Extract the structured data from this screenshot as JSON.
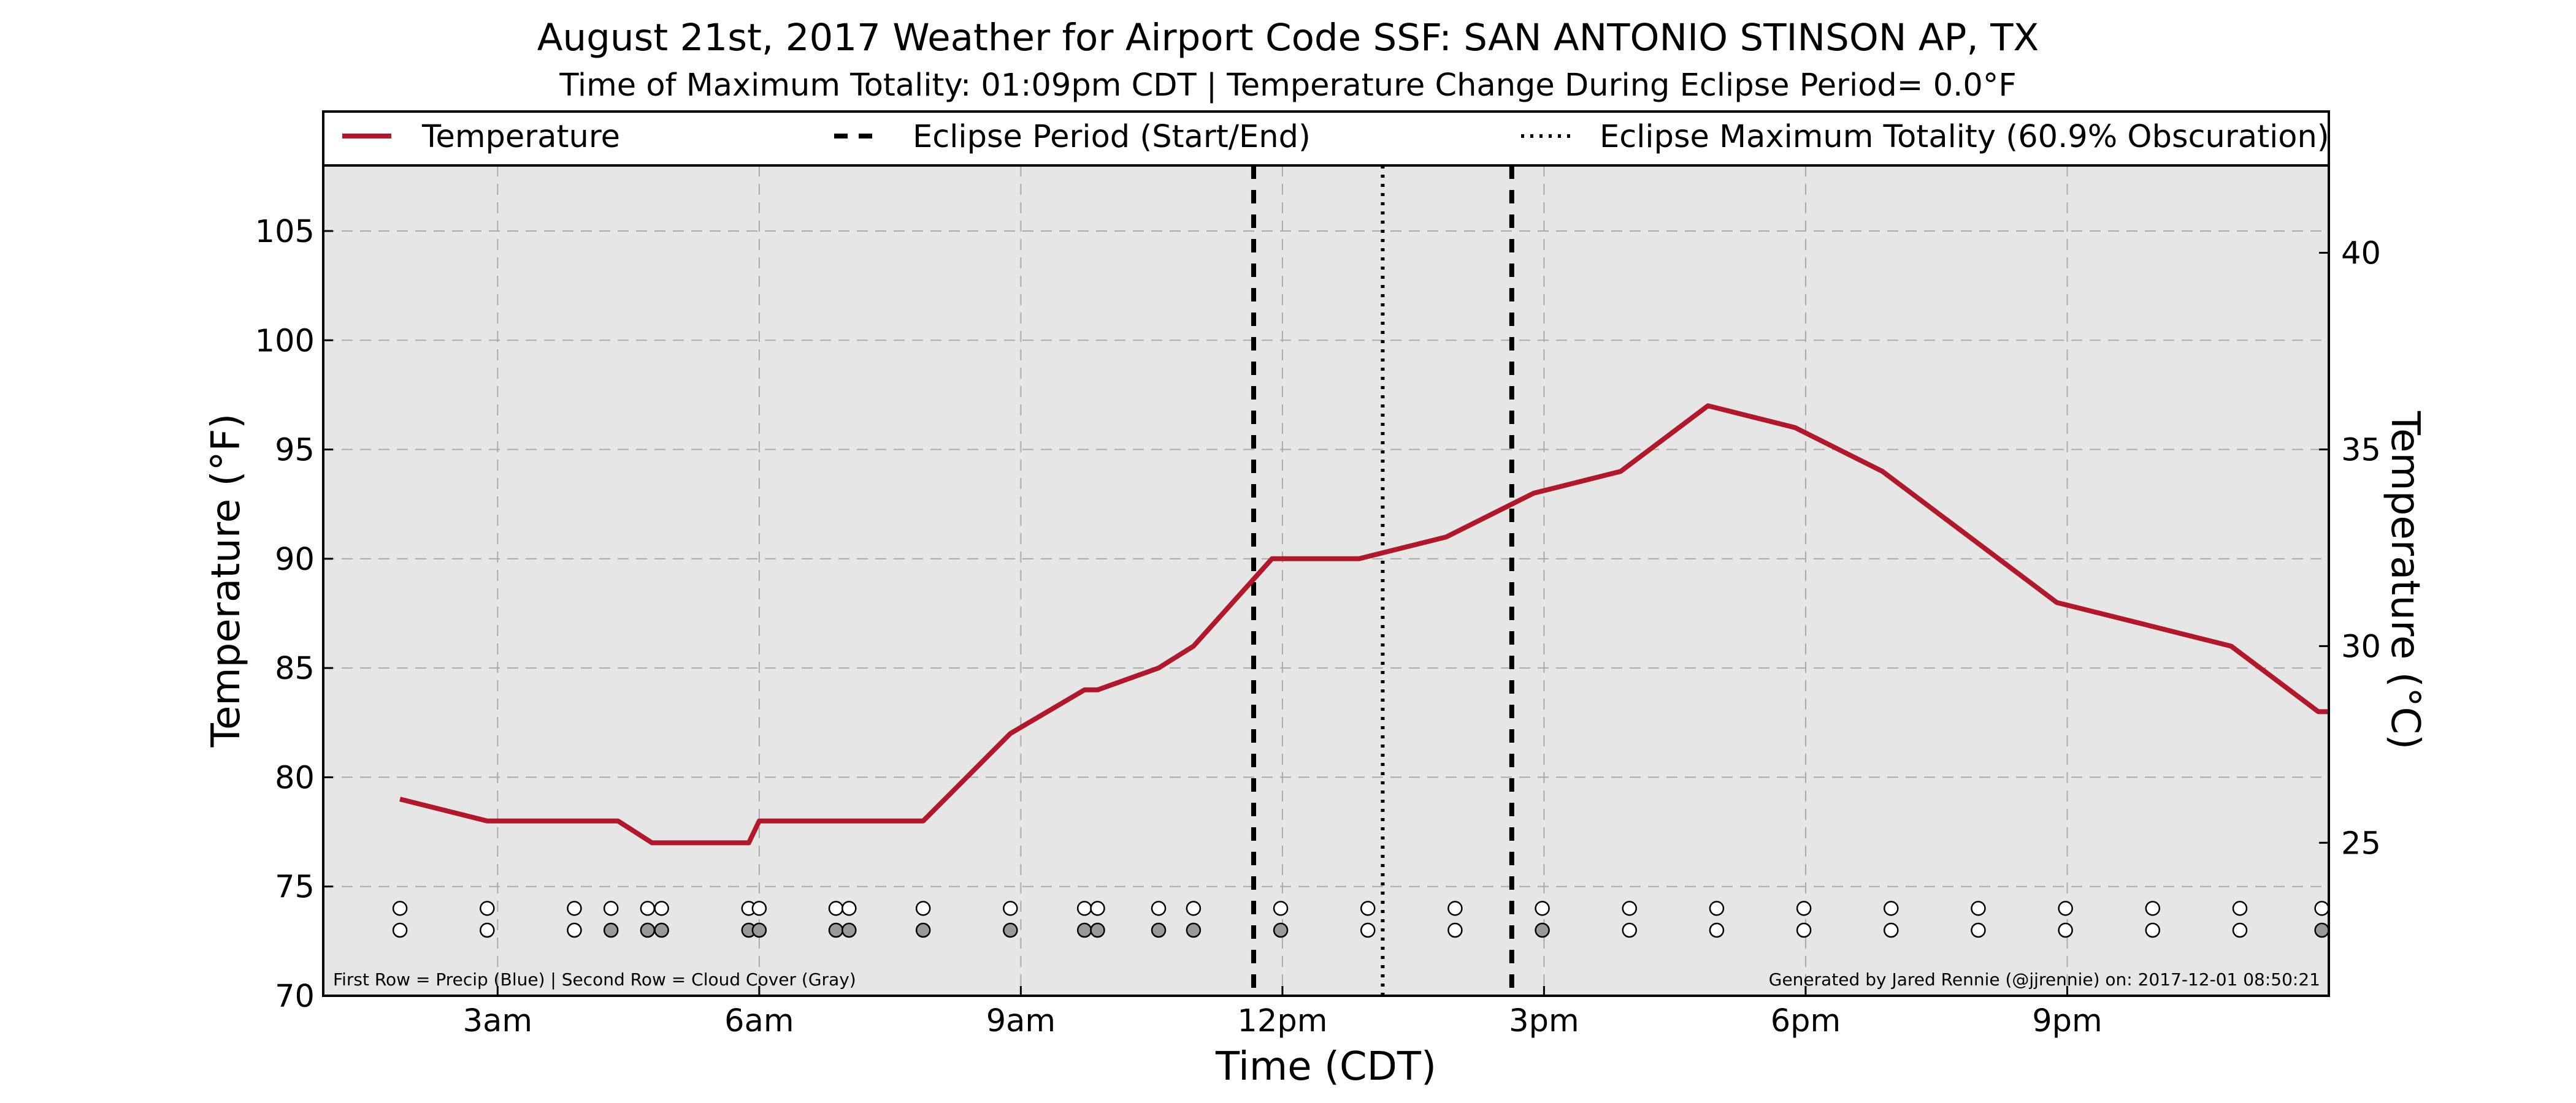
{
  "chart_data": {
    "type": "line",
    "title": "August 21st, 2017 Weather for Airport Code SSF: SAN ANTONIO STINSON AP, TX",
    "subtitle": "Time of Maximum Totality: 01:09pm CDT | Temperature Change During Eclipse Period= 0.0°F",
    "xlabel": "Time (CDT)",
    "ylabel": "Temperature (°F)",
    "ylabel_right": "Temperature (°C)",
    "xlim": [
      1.0,
      24.0
    ],
    "ylim": [
      70,
      108
    ],
    "ylim_right_c": [
      21.11,
      42.22
    ],
    "x_ticks": [
      {
        "value": 3,
        "label": "3am"
      },
      {
        "value": 6,
        "label": "6am"
      },
      {
        "value": 9,
        "label": "9am"
      },
      {
        "value": 12,
        "label": "12pm"
      },
      {
        "value": 15,
        "label": "3pm"
      },
      {
        "value": 18,
        "label": "6pm"
      },
      {
        "value": 21,
        "label": "9pm"
      }
    ],
    "y_ticks": [
      "70",
      "75",
      "80",
      "85",
      "90",
      "95",
      "100",
      "105"
    ],
    "y_ticks_right": [
      "25",
      "30",
      "35",
      "40"
    ],
    "grid": true,
    "legend_position": "top",
    "series": [
      {
        "name": "Temperature",
        "color": "#b2182b",
        "x": [
          1.88,
          2.88,
          3.88,
          4.38,
          4.77,
          4.95,
          5.88,
          6.0,
          6.88,
          7.88,
          8.88,
          9.73,
          9.88,
          10.58,
          10.98,
          11.88,
          12.88,
          13.88,
          14.88,
          15.88,
          16.88,
          17.88,
          18.88,
          19.88,
          20.88,
          21.88,
          22.88,
          23.88,
          24.0
        ],
        "values": [
          79,
          78,
          78,
          78,
          77,
          77,
          77,
          78,
          78,
          78,
          82,
          84,
          84,
          85,
          86,
          90,
          90,
          91,
          93,
          94,
          97,
          96,
          94,
          91,
          88,
          87,
          86,
          83,
          83
        ]
      }
    ],
    "eclipse": {
      "start": 11.67,
      "end": 14.63,
      "max": 13.15,
      "start_end_label": "Eclipse Period (Start/End)",
      "max_label": "Eclipse Maximum Totality (60.9% Obscuration)"
    },
    "precip_row": {
      "label_y": 74,
      "x": [
        1.88,
        2.88,
        3.88,
        4.3,
        4.72,
        4.88,
        5.88,
        6.0,
        6.88,
        7.03,
        7.88,
        8.88,
        9.73,
        9.88,
        10.58,
        10.98,
        11.98,
        12.98,
        13.98,
        14.98,
        15.98,
        16.98,
        17.98,
        18.98,
        19.98,
        20.98,
        21.98,
        22.98,
        23.92
      ],
      "fill": [
        "white",
        "white",
        "white",
        "white",
        "white",
        "white",
        "white",
        "white",
        "white",
        "white",
        "white",
        "white",
        "white",
        "white",
        "white",
        "white",
        "white",
        "white",
        "white",
        "white",
        "white",
        "white",
        "white",
        "white",
        "white",
        "white",
        "white",
        "white",
        "white"
      ]
    },
    "cloud_row": {
      "label_y": 73,
      "x": [
        1.88,
        2.88,
        3.88,
        4.3,
        4.72,
        4.88,
        5.88,
        6.0,
        6.88,
        7.03,
        7.88,
        8.88,
        9.73,
        9.88,
        10.58,
        10.98,
        11.98,
        12.98,
        13.98,
        14.98,
        15.98,
        16.98,
        17.98,
        18.98,
        19.98,
        20.98,
        21.98,
        22.98,
        23.92
      ],
      "fill": [
        "white",
        "white",
        "white",
        "gray",
        "gray",
        "gray",
        "gray",
        "gray",
        "gray",
        "gray",
        "gray",
        "gray",
        "gray",
        "gray",
        "gray",
        "gray",
        "gray",
        "white",
        "white",
        "gray",
        "white",
        "white",
        "white",
        "white",
        "white",
        "white",
        "white",
        "white",
        "gray"
      ]
    },
    "footnote_left": "First Row = Precip (Blue) | Second Row = Cloud Cover (Gray)",
    "footnote_right": "Generated by Jared Rennie (@jjrennie) on: 2017-12-01 08:50:21"
  },
  "colors": {
    "plot_bg": "#e6e6e6",
    "temperature": "#b2182b",
    "grid": "#aaaaaa",
    "cloud_gray": "#999999"
  }
}
